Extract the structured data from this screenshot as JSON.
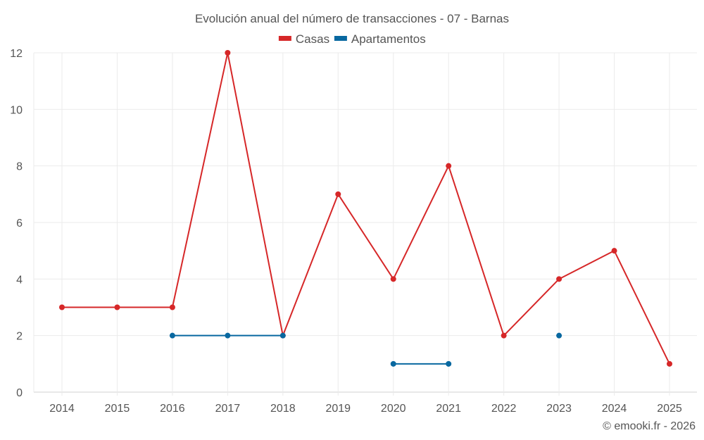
{
  "chart_data": {
    "type": "line",
    "title": "Evolución anual del número de transacciones - 07 - Barnas",
    "xlabel": "",
    "ylabel": "",
    "categories": [
      "2014",
      "2015",
      "2016",
      "2017",
      "2018",
      "2019",
      "2020",
      "2021",
      "2022",
      "2023",
      "2024",
      "2025"
    ],
    "series": [
      {
        "name": "Casas",
        "color": "#d62728",
        "values": [
          3,
          3,
          3,
          12,
          2,
          7,
          4,
          8,
          2,
          4,
          5,
          1
        ]
      },
      {
        "name": "Apartamentos",
        "color": "#0868a0",
        "values": [
          null,
          null,
          2,
          2,
          2,
          null,
          1,
          1,
          null,
          2,
          null,
          null
        ]
      }
    ],
    "ylim": [
      0,
      12
    ],
    "yticks": [
      0,
      2,
      4,
      6,
      8,
      10,
      12
    ],
    "grid": true,
    "legend_position": "top"
  },
  "legend": {
    "items": [
      {
        "label": "Casas",
        "color": "#d62728"
      },
      {
        "label": "Apartamentos",
        "color": "#0868a0"
      }
    ]
  },
  "credit": "© emooki.fr - 2026"
}
